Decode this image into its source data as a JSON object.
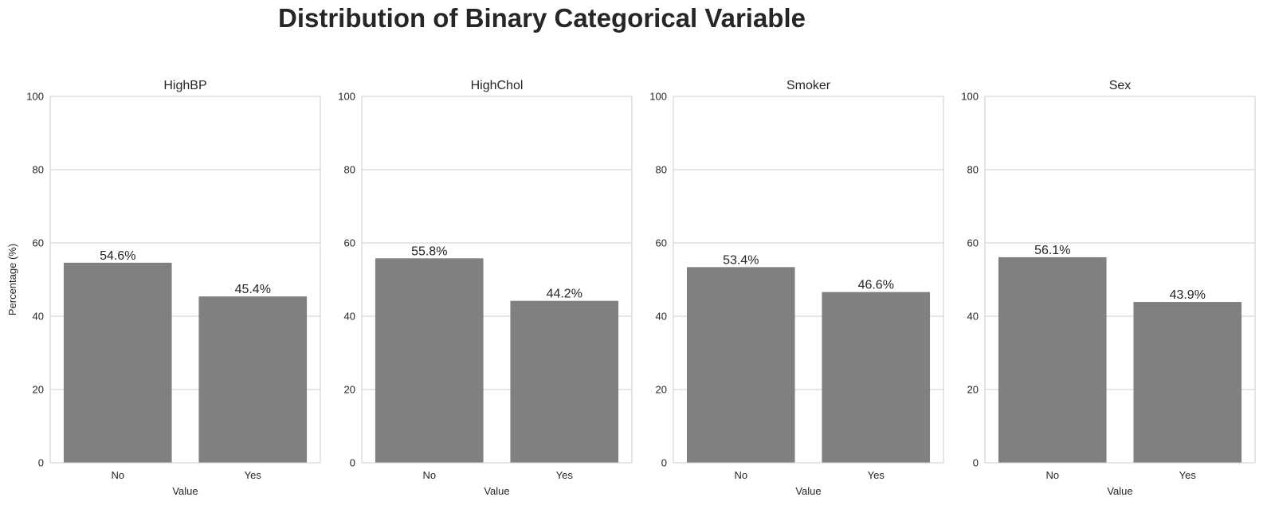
{
  "chart_data": {
    "suptitle": "Distribution of Binary Categorical Variable",
    "charts": [
      {
        "type": "bar",
        "title": "HighBP",
        "categories": [
          "No",
          "Yes"
        ],
        "values": [
          54.6,
          45.4
        ],
        "data_labels": [
          "54.6%",
          "45.4%"
        ],
        "xlabel": "Value",
        "ylabel": "Percentage (%)",
        "ylim": [
          0,
          100
        ],
        "yticks": [
          "0",
          "20",
          "40",
          "60",
          "80",
          "100"
        ]
      },
      {
        "type": "bar",
        "title": "HighChol",
        "categories": [
          "No",
          "Yes"
        ],
        "values": [
          55.8,
          44.2
        ],
        "data_labels": [
          "55.8%",
          "44.2%"
        ],
        "xlabel": "Value",
        "ylabel": "",
        "ylim": [
          0,
          100
        ],
        "yticks": [
          "0",
          "20",
          "40",
          "60",
          "80",
          "100"
        ]
      },
      {
        "type": "bar",
        "title": "Smoker",
        "categories": [
          "No",
          "Yes"
        ],
        "values": [
          53.4,
          46.6
        ],
        "data_labels": [
          "53.4%",
          "46.6%"
        ],
        "xlabel": "Value",
        "ylabel": "",
        "ylim": [
          0,
          100
        ],
        "yticks": [
          "0",
          "20",
          "40",
          "60",
          "80",
          "100"
        ]
      },
      {
        "type": "bar",
        "title": "Sex",
        "categories": [
          "No",
          "Yes"
        ],
        "values": [
          56.1,
          43.9
        ],
        "data_labels": [
          "56.1%",
          "43.9%"
        ],
        "xlabel": "Value",
        "ylabel": "",
        "ylim": [
          0,
          100
        ],
        "yticks": [
          "0",
          "20",
          "40",
          "60",
          "80",
          "100"
        ]
      }
    ],
    "bar_color": "#808080",
    "grid": true
  }
}
